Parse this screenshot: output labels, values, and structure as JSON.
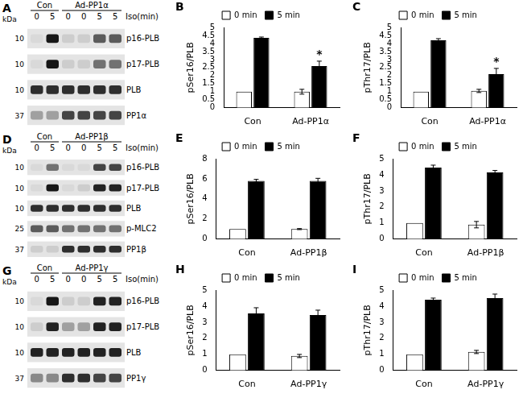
{
  "chart_data": [
    {
      "type": "bar",
      "panel": "B",
      "y_label": "pSer16/PLB",
      "categories": [
        "Con",
        "Ad-PP1α"
      ],
      "series": [
        {
          "name": "0 min",
          "color": "#ffffff",
          "values": [
            1,
            1
          ],
          "errors": [
            0,
            0.15
          ]
        },
        {
          "name": "5 min",
          "color": "#000000",
          "values": [
            4.35,
            2.6
          ],
          "errors": [
            0.05,
            0.3
          ]
        }
      ],
      "ylim": [
        0,
        5
      ],
      "yticks": [
        0,
        0.5,
        1,
        1.5,
        2,
        2.5,
        3,
        3.5,
        4,
        4.5,
        5
      ],
      "grid": false,
      "legend": "top",
      "annotations": [
        {
          "category": "Ad-PP1α",
          "series": "5 min",
          "text": "*"
        }
      ]
    },
    {
      "type": "bar",
      "panel": "C",
      "y_label": "pThr17/PLB",
      "categories": [
        "Con",
        "Ad-PP1α"
      ],
      "series": [
        {
          "name": "0 min",
          "color": "#ffffff",
          "values": [
            1,
            1.05
          ],
          "errors": [
            0,
            0.1
          ]
        },
        {
          "name": "5 min",
          "color": "#000000",
          "values": [
            4.2,
            2.1
          ],
          "errors": [
            0.1,
            0.35
          ]
        }
      ],
      "ylim": [
        0,
        5
      ],
      "yticks": [
        0,
        0.5,
        1,
        1.5,
        2,
        2.5,
        3,
        3.5,
        4,
        4.5,
        5
      ],
      "grid": false,
      "legend": "top",
      "annotations": [
        {
          "category": "Ad-PP1α",
          "series": "5 min",
          "text": "*"
        }
      ]
    },
    {
      "type": "bar",
      "panel": "E",
      "y_label": "pSer16/PLB",
      "categories": [
        "Con",
        "Ad-PP1β"
      ],
      "series": [
        {
          "name": "0 min",
          "color": "#ffffff",
          "values": [
            1,
            1
          ],
          "errors": [
            0,
            0.05
          ]
        },
        {
          "name": "5 min",
          "color": "#000000",
          "values": [
            5.8,
            5.8
          ],
          "errors": [
            0.15,
            0.25
          ]
        }
      ],
      "ylim": [
        0,
        8
      ],
      "yticks": [
        0,
        2,
        4,
        6,
        8
      ],
      "grid": false,
      "legend": "top"
    },
    {
      "type": "bar",
      "panel": "F",
      "y_label": "pThr17/PLB",
      "categories": [
        "Con",
        "Ad-PP1β"
      ],
      "series": [
        {
          "name": "0 min",
          "color": "#ffffff",
          "values": [
            1,
            0.9
          ],
          "errors": [
            0,
            0.2
          ]
        },
        {
          "name": "5 min",
          "color": "#000000",
          "values": [
            4.45,
            4.15
          ],
          "errors": [
            0.15,
            0.12
          ]
        }
      ],
      "ylim": [
        0,
        5
      ],
      "yticks": [
        0,
        1,
        2,
        3,
        4,
        5
      ],
      "grid": false,
      "legend": "top"
    },
    {
      "type": "bar",
      "panel": "H",
      "y_label": "pSer16/PLB",
      "categories": [
        "Con",
        "Ad-PP1γ"
      ],
      "series": [
        {
          "name": "0 min",
          "color": "#ffffff",
          "values": [
            1,
            0.9
          ],
          "errors": [
            0,
            0.1
          ]
        },
        {
          "name": "5 min",
          "color": "#000000",
          "values": [
            3.55,
            3.45
          ],
          "errors": [
            0.35,
            0.3
          ]
        }
      ],
      "ylim": [
        0,
        5
      ],
      "yticks": [
        0,
        1,
        2,
        3,
        4,
        5
      ],
      "grid": false,
      "legend": "top"
    },
    {
      "type": "bar",
      "panel": "I",
      "y_label": "pThr17/PLB",
      "categories": [
        "Con",
        "Ad-PP1γ"
      ],
      "series": [
        {
          "name": "0 min",
          "color": "#ffffff",
          "values": [
            1,
            1.15
          ],
          "errors": [
            0,
            0.1
          ]
        },
        {
          "name": "5 min",
          "color": "#000000",
          "values": [
            4.4,
            4.5
          ],
          "errors": [
            0.1,
            0.25
          ]
        }
      ],
      "ylim": [
        0,
        5
      ],
      "yticks": [
        0,
        1,
        2,
        3,
        4,
        5
      ],
      "grid": false,
      "legend": "top"
    }
  ],
  "blots": [
    {
      "panel": "A",
      "unit": "kDa",
      "groups": [
        {
          "label": "Con",
          "lanes": 2
        },
        {
          "label": "Ad-PP1α",
          "lanes": 4
        }
      ],
      "lane_labels": [
        "0",
        "5",
        "0",
        "0",
        "5",
        "5"
      ],
      "lane_title": "Iso(min)",
      "rows": [
        {
          "label": "p16-PLB",
          "kDa": 10,
          "intensity": [
            0.05,
            0.9,
            0.1,
            0.1,
            0.6,
            0.6
          ]
        },
        {
          "label": "p17-PLB",
          "kDa": 10,
          "intensity": [
            0.05,
            0.9,
            0.1,
            0.1,
            0.5,
            0.5
          ]
        },
        {
          "label": "PLB",
          "kDa": 10,
          "intensity": [
            0.8,
            0.8,
            0.8,
            0.8,
            0.8,
            0.8
          ]
        },
        {
          "label": "PP1α",
          "kDa": 37,
          "intensity": [
            0.3,
            0.3,
            0.7,
            0.7,
            0.7,
            0.7
          ]
        }
      ]
    },
    {
      "panel": "D",
      "unit": "kDa",
      "groups": [
        {
          "label": "Con",
          "lanes": 2
        },
        {
          "label": "Ad-PP1β",
          "lanes": 4
        }
      ],
      "lane_labels": [
        "0",
        "5",
        "0",
        "0",
        "5",
        "5"
      ],
      "lane_title": "Iso(min)",
      "rows": [
        {
          "label": "p16-PLB",
          "kDa": 10,
          "intensity": [
            0.05,
            0.5,
            0.05,
            0.05,
            0.7,
            0.7
          ]
        },
        {
          "label": "p17-PLB",
          "kDa": 10,
          "intensity": [
            0.05,
            0.9,
            0.05,
            0.1,
            0.85,
            0.85
          ]
        },
        {
          "label": "PLB",
          "kDa": 10,
          "intensity": [
            0.8,
            0.8,
            0.8,
            0.8,
            0.8,
            0.8
          ]
        },
        {
          "label": "p-MLC2",
          "kDa": 25,
          "intensity": [
            0.6,
            0.6,
            0.5,
            0.5,
            0.5,
            0.5
          ]
        },
        {
          "label": "PP1β",
          "kDa": 37,
          "intensity": [
            0.1,
            0.1,
            0.8,
            0.8,
            0.8,
            0.8
          ]
        }
      ]
    },
    {
      "panel": "G",
      "unit": "kDa",
      "groups": [
        {
          "label": "Con",
          "lanes": 2
        },
        {
          "label": "Ad-PP1γ",
          "lanes": 4
        }
      ],
      "lane_labels": [
        "0",
        "5",
        "0",
        "0",
        "5",
        "5"
      ],
      "lane_title": "Iso(min)",
      "rows": [
        {
          "label": "p16-PLB",
          "kDa": 10,
          "intensity": [
            0.05,
            0.9,
            0.1,
            0.1,
            0.85,
            0.85
          ]
        },
        {
          "label": "p17-PLB",
          "kDa": 10,
          "intensity": [
            0.1,
            0.85,
            0.3,
            0.3,
            0.85,
            0.85
          ]
        },
        {
          "label": "PLB",
          "kDa": 10,
          "intensity": [
            0.85,
            0.85,
            0.85,
            0.85,
            0.85,
            0.85
          ]
        },
        {
          "label": "PP1γ",
          "kDa": 37,
          "intensity": [
            0.4,
            0.4,
            0.8,
            0.8,
            0.7,
            0.7
          ]
        }
      ]
    }
  ]
}
